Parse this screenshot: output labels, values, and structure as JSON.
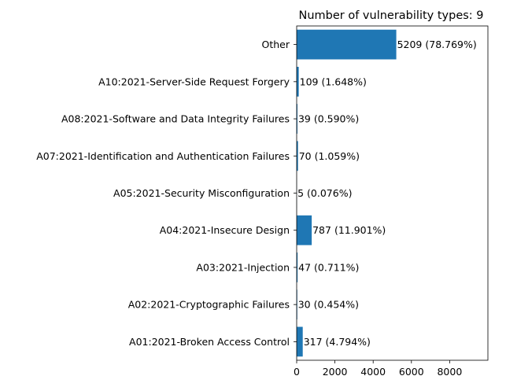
{
  "chart_data": {
    "type": "bar",
    "orientation": "horizontal",
    "title": "Number of vulnerability types: 9",
    "xlabel": "",
    "ylabel": "",
    "categories": [
      "A01:2021-Broken Access Control",
      "A02:2021-Cryptographic Failures",
      "A03:2021-Injection",
      "A04:2021-Insecure Design",
      "A05:2021-Security Misconfiguration",
      "A07:2021-Identification and Authentication Failures",
      "A08:2021-Software and Data Integrity Failures",
      "A10:2021-Server-Side Request Forgery",
      "Other"
    ],
    "values": [
      317,
      30,
      47,
      787,
      5,
      70,
      39,
      109,
      5209
    ],
    "bar_labels": [
      "317 (4.794%)",
      "30 (0.454%)",
      "47 (0.711%)",
      "787 (11.901%)",
      "5 (0.076%)",
      "70 (1.059%)",
      "39 (0.590%)",
      "109 (1.648%)",
      "5209 (78.769%)"
    ],
    "xticks": [
      0,
      2000,
      4000,
      6000,
      8000
    ],
    "xlim": [
      0,
      10000
    ],
    "grid": false,
    "bar_color": "#1f77b4"
  }
}
